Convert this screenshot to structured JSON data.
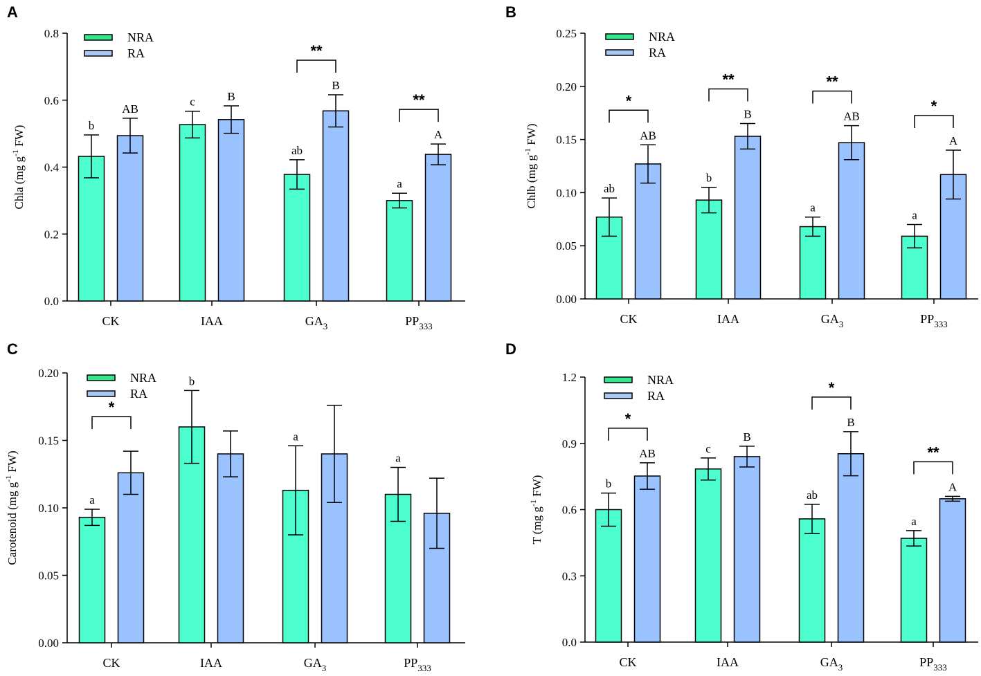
{
  "colors": {
    "NRA": "#4dffcf",
    "RA": "#99c2ff",
    "NRA_legend": "#33e88a",
    "RA_legend": "#a9c8f5"
  },
  "chart_data": [
    {
      "panel": "A",
      "type": "bar",
      "ylabel": {
        "pre": "Chla (mg g",
        "sup": "-1",
        "post": " FW)"
      },
      "ylim": [
        0,
        0.8
      ],
      "yticks": [
        "0.0",
        "0.2",
        "0.4",
        "0.6",
        "0.8"
      ],
      "categories": [
        {
          "base": "CK",
          "sub": ""
        },
        {
          "base": "IAA",
          "sub": ""
        },
        {
          "base": "GA",
          "sub": "3"
        },
        {
          "base": "PP",
          "sub": "333"
        }
      ],
      "legend": [
        "NRA",
        "RA"
      ],
      "series": [
        {
          "name": "NRA",
          "values": [
            0.432,
            0.527,
            0.378,
            0.3
          ],
          "errors": [
            0.064,
            0.04,
            0.044,
            0.022
          ],
          "letters": [
            "b",
            "c",
            "ab",
            "a"
          ]
        },
        {
          "name": "RA",
          "values": [
            0.494,
            0.542,
            0.568,
            0.438
          ],
          "errors": [
            0.052,
            0.041,
            0.048,
            0.031
          ],
          "letters": [
            "AB",
            "B",
            "B",
            "A"
          ]
        }
      ],
      "significance": [
        "",
        "",
        "**",
        "**"
      ]
    },
    {
      "panel": "B",
      "type": "bar",
      "ylabel": {
        "pre": "Chlb (mg g",
        "sup": "-1",
        "post": " FW)"
      },
      "ylim": [
        0,
        0.25
      ],
      "yticks": [
        "0.00",
        "0.05",
        "0.10",
        "0.15",
        "0.20",
        "0.25"
      ],
      "categories": [
        {
          "base": "CK",
          "sub": ""
        },
        {
          "base": "IAA",
          "sub": ""
        },
        {
          "base": "GA",
          "sub": "3"
        },
        {
          "base": "PP",
          "sub": "333"
        }
      ],
      "legend": [
        "NRA",
        "RA"
      ],
      "series": [
        {
          "name": "NRA",
          "values": [
            0.077,
            0.093,
            0.068,
            0.059
          ],
          "errors": [
            0.018,
            0.012,
            0.009,
            0.011
          ],
          "letters": [
            "ab",
            "b",
            "a",
            "a"
          ]
        },
        {
          "name": "RA",
          "values": [
            0.127,
            0.153,
            0.147,
            0.117
          ],
          "errors": [
            0.018,
            0.012,
            0.016,
            0.023
          ],
          "letters": [
            "AB",
            "B",
            "AB",
            "A"
          ]
        }
      ],
      "significance": [
        "*",
        "**",
        "**",
        "*"
      ]
    },
    {
      "panel": "C",
      "type": "bar",
      "ylabel": {
        "pre": "Carotenoid (mg g",
        "sup": "-1",
        "post": " FW)"
      },
      "ylim": [
        0,
        0.2
      ],
      "yticks": [
        "0.00",
        "0.05",
        "0.10",
        "0.15",
        "0.20"
      ],
      "categories": [
        {
          "base": "CK",
          "sub": ""
        },
        {
          "base": "IAA",
          "sub": ""
        },
        {
          "base": "GA",
          "sub": "3"
        },
        {
          "base": "PP",
          "sub": "333"
        }
      ],
      "legend": [
        "NRA",
        "RA"
      ],
      "series": [
        {
          "name": "NRA",
          "values": [
            0.093,
            0.16,
            0.113,
            0.11
          ],
          "errors": [
            0.006,
            0.027,
            0.033,
            0.02
          ],
          "letters": [
            "a",
            "b",
            "a",
            "a"
          ]
        },
        {
          "name": "RA",
          "values": [
            0.126,
            0.14,
            0.14,
            0.096
          ],
          "errors": [
            0.016,
            0.017,
            0.036,
            0.026
          ],
          "letters": [
            "",
            "",
            "",
            ""
          ]
        }
      ],
      "significance": [
        "*",
        "",
        "",
        ""
      ]
    },
    {
      "panel": "D",
      "type": "bar",
      "ylabel": {
        "pre": "T (mg g",
        "sup": "-1",
        "post": " FW)"
      },
      "ylim": [
        0,
        1.2
      ],
      "yticks": [
        "0.0",
        "0.3",
        "0.6",
        "0.9",
        "1.2"
      ],
      "categories": [
        {
          "base": "CK",
          "sub": ""
        },
        {
          "base": "IAA",
          "sub": ""
        },
        {
          "base": "GA",
          "sub": "3"
        },
        {
          "base": "PP",
          "sub": "333"
        }
      ],
      "legend": [
        "NRA",
        "RA"
      ],
      "series": [
        {
          "name": "NRA",
          "values": [
            0.6,
            0.784,
            0.558,
            0.47
          ],
          "errors": [
            0.075,
            0.05,
            0.066,
            0.035
          ],
          "letters": [
            "b",
            "c",
            "ab",
            "a"
          ]
        },
        {
          "name": "RA",
          "values": [
            0.752,
            0.84,
            0.853,
            0.649
          ],
          "errors": [
            0.06,
            0.047,
            0.1,
            0.011
          ],
          "letters": [
            "AB",
            "B",
            "B",
            "A"
          ]
        }
      ],
      "significance": [
        "*",
        "",
        "*",
        "**"
      ]
    }
  ]
}
